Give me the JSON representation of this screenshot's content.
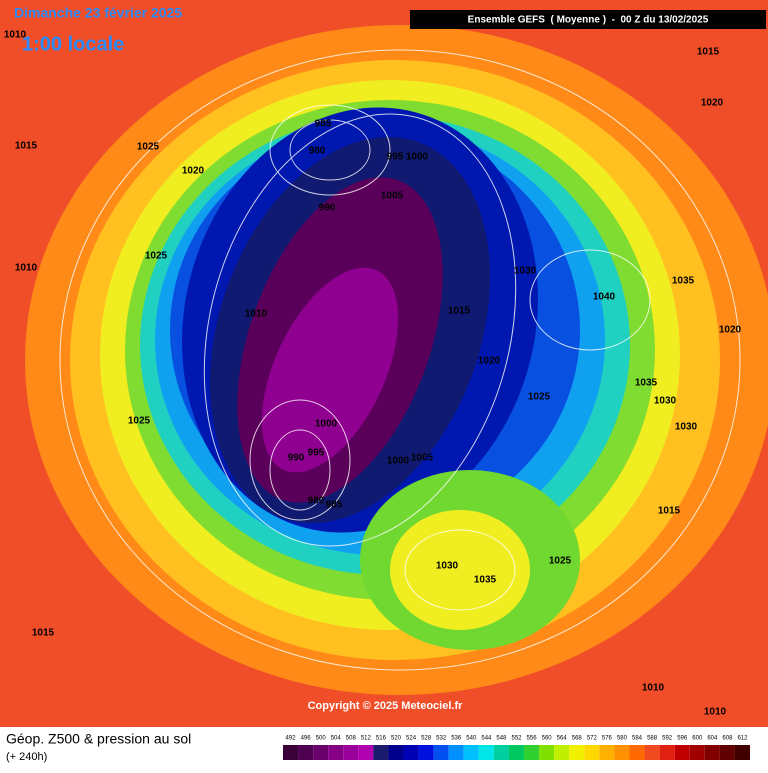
{
  "header": {
    "date": "Dimanche 23 février 2025",
    "time": "1:00 locale",
    "model": "Ensemble GEFS  ( Moyenne )  -  00 Z du 13/02/2025"
  },
  "map": {
    "isobar_labels": [
      1010,
      1015,
      1020,
      1015,
      1025,
      985,
      980,
      995,
      1000,
      1020,
      1005,
      990,
      1025,
      1010,
      1030,
      1040,
      1035,
      1010,
      1015,
      1020,
      1020,
      1035,
      1030,
      1025,
      1025,
      1000,
      1030,
      990,
      995,
      1005,
      1000,
      980,
      985,
      1015,
      1025,
      1030,
      1035,
      1015,
      1010,
      1010
    ],
    "copyright": "Copyright © 2025 Meteociel.fr"
  },
  "footer": {
    "title": "Géop. Z500 & pression au sol",
    "lead": "(+ 240h)"
  },
  "legend": {
    "values": [
      492,
      496,
      500,
      504,
      508,
      512,
      516,
      520,
      524,
      528,
      532,
      536,
      540,
      544,
      548,
      552,
      556,
      560,
      564,
      568,
      572,
      576,
      580,
      584,
      588,
      592,
      596,
      600,
      604,
      608,
      612
    ],
    "colors": [
      "#3a0038",
      "#4f0050",
      "#6a006a",
      "#850085",
      "#9a009a",
      "#b000b0",
      "#1a1a6e",
      "#00008c",
      "#0000b4",
      "#0010dc",
      "#0050f0",
      "#0090ff",
      "#00c0ff",
      "#00e6e6",
      "#00d0a0",
      "#00c860",
      "#30d030",
      "#80e000",
      "#c0f000",
      "#f0f000",
      "#ffd800",
      "#ffb000",
      "#ff9000",
      "#ff6a00",
      "#f04a20",
      "#e02010",
      "#c00000",
      "#a00000",
      "#800000",
      "#600000",
      "#400000"
    ]
  }
}
